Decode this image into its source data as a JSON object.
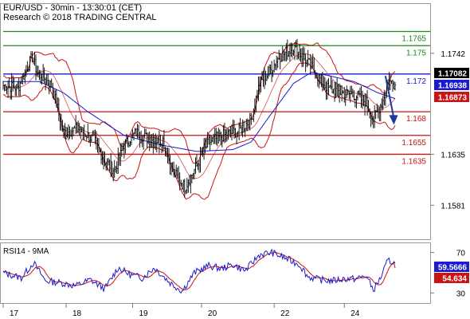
{
  "header": {
    "title": "EUR/USD - 30min - 13:30:01 (CET)",
    "subtitle": "Research © 2018 TRADING CENTRAL"
  },
  "colors": {
    "resistance": "#1a8a1a",
    "pivot": "#1a1ad0",
    "support": "#c81414",
    "price": "#000000",
    "ma": "#1a1ad0",
    "bollinger": "#c81414",
    "arrow": "#1a3aa0",
    "rsi": "#1a1ad0",
    "rsi_ma": "#c81414",
    "price_box": "#000000",
    "ma_box": "#1a1ad0",
    "bb_box": "#c81414"
  },
  "chart_data": [
    {
      "type": "line",
      "instrument": "EUR/USD",
      "timeframe": "30min",
      "ylim": [
        1.1545,
        1.1795
      ],
      "y_ticks": [
        1.1742,
        1.1635,
        1.1581
      ],
      "x_ticks": [
        {
          "label": "17",
          "idx": 0
        },
        {
          "label": "18",
          "idx": 52
        },
        {
          "label": "19",
          "idx": 107
        },
        {
          "label": "20",
          "idx": 164
        },
        {
          "label": "22",
          "idx": 224
        },
        {
          "label": "24",
          "idx": 282
        }
      ],
      "n_bars": 325,
      "levels": [
        {
          "value": 1.1765,
          "label": "1.1765",
          "kind": "resistance"
        },
        {
          "value": 1.175,
          "label": "1.175",
          "kind": "resistance"
        },
        {
          "value": 1.172,
          "label": "1.172",
          "kind": "pivot"
        },
        {
          "value": 1.168,
          "label": "1.168",
          "kind": "support"
        },
        {
          "value": 1.1655,
          "label": "1.1655",
          "kind": "support"
        },
        {
          "value": 1.1635,
          "label": "1.1635",
          "kind": "support"
        }
      ],
      "price_waypoints": [
        [
          0,
          1.1708
        ],
        [
          12,
          1.1705
        ],
        [
          24,
          1.1738
        ],
        [
          28,
          1.1722
        ],
        [
          40,
          1.1708
        ],
        [
          50,
          1.1658
        ],
        [
          62,
          1.1662
        ],
        [
          75,
          1.165
        ],
        [
          84,
          1.1628
        ],
        [
          92,
          1.1618
        ],
        [
          100,
          1.1645
        ],
        [
          110,
          1.1658
        ],
        [
          122,
          1.165
        ],
        [
          132,
          1.165
        ],
        [
          140,
          1.1618
        ],
        [
          150,
          1.16
        ],
        [
          158,
          1.1618
        ],
        [
          170,
          1.1648
        ],
        [
          182,
          1.1655
        ],
        [
          195,
          1.166
        ],
        [
          205,
          1.1672
        ],
        [
          212,
          1.171
        ],
        [
          220,
          1.1722
        ],
        [
          228,
          1.1738
        ],
        [
          240,
          1.1748
        ],
        [
          250,
          1.1735
        ],
        [
          260,
          1.1718
        ],
        [
          268,
          1.1705
        ],
        [
          280,
          1.17
        ],
        [
          290,
          1.1698
        ],
        [
          300,
          1.169
        ],
        [
          306,
          1.1672
        ],
        [
          314,
          1.1692
        ],
        [
          318,
          1.1713
        ],
        [
          324,
          1.1708
        ]
      ],
      "ma_waypoints": [
        [
          0,
          1.1712
        ],
        [
          30,
          1.1712
        ],
        [
          50,
          1.17
        ],
        [
          70,
          1.168
        ],
        [
          100,
          1.1655
        ],
        [
          130,
          1.1645
        ],
        [
          160,
          1.1638
        ],
        [
          190,
          1.164
        ],
        [
          205,
          1.1648
        ],
        [
          220,
          1.1675
        ],
        [
          240,
          1.171
        ],
        [
          255,
          1.1722
        ],
        [
          270,
          1.1718
        ],
        [
          290,
          1.1712
        ],
        [
          310,
          1.17
        ],
        [
          324,
          1.1694
        ]
      ],
      "last_price": {
        "value": 1.17082,
        "label": "1.17082"
      },
      "ma_last": {
        "value": 1.16938,
        "label": "1.16938"
      },
      "bb_lower_last": {
        "value": 1.16873,
        "label": "1.16873"
      },
      "forecast_arrow": {
        "from": [
          316,
          1.1718
        ],
        "to": [
          323,
          1.1668
        ]
      }
    },
    {
      "type": "line",
      "title": "RSI14 - 9MA",
      "ylim": [
        20,
        80
      ],
      "y_ticks": [
        70,
        30
      ],
      "rsi_waypoints": [
        [
          0,
          50
        ],
        [
          15,
          45
        ],
        [
          25,
          60
        ],
        [
          35,
          42
        ],
        [
          48,
          40
        ],
        [
          60,
          37
        ],
        [
          72,
          43
        ],
        [
          84,
          34
        ],
        [
          95,
          55
        ],
        [
          105,
          48
        ],
        [
          115,
          45
        ],
        [
          125,
          55
        ],
        [
          138,
          40
        ],
        [
          148,
          32
        ],
        [
          158,
          50
        ],
        [
          170,
          57
        ],
        [
          180,
          54
        ],
        [
          190,
          58
        ],
        [
          200,
          52
        ],
        [
          212,
          68
        ],
        [
          222,
          70
        ],
        [
          232,
          65
        ],
        [
          245,
          58
        ],
        [
          252,
          46
        ],
        [
          262,
          43
        ],
        [
          272,
          42
        ],
        [
          282,
          44
        ],
        [
          292,
          44
        ],
        [
          300,
          47
        ],
        [
          306,
          33
        ],
        [
          312,
          45
        ],
        [
          318,
          62
        ],
        [
          324,
          60
        ]
      ],
      "rsi_last": {
        "value": 59.5666,
        "label": "59.5666"
      },
      "rsi_ma_last": {
        "value": 54.634,
        "label": "54.634"
      }
    }
  ]
}
